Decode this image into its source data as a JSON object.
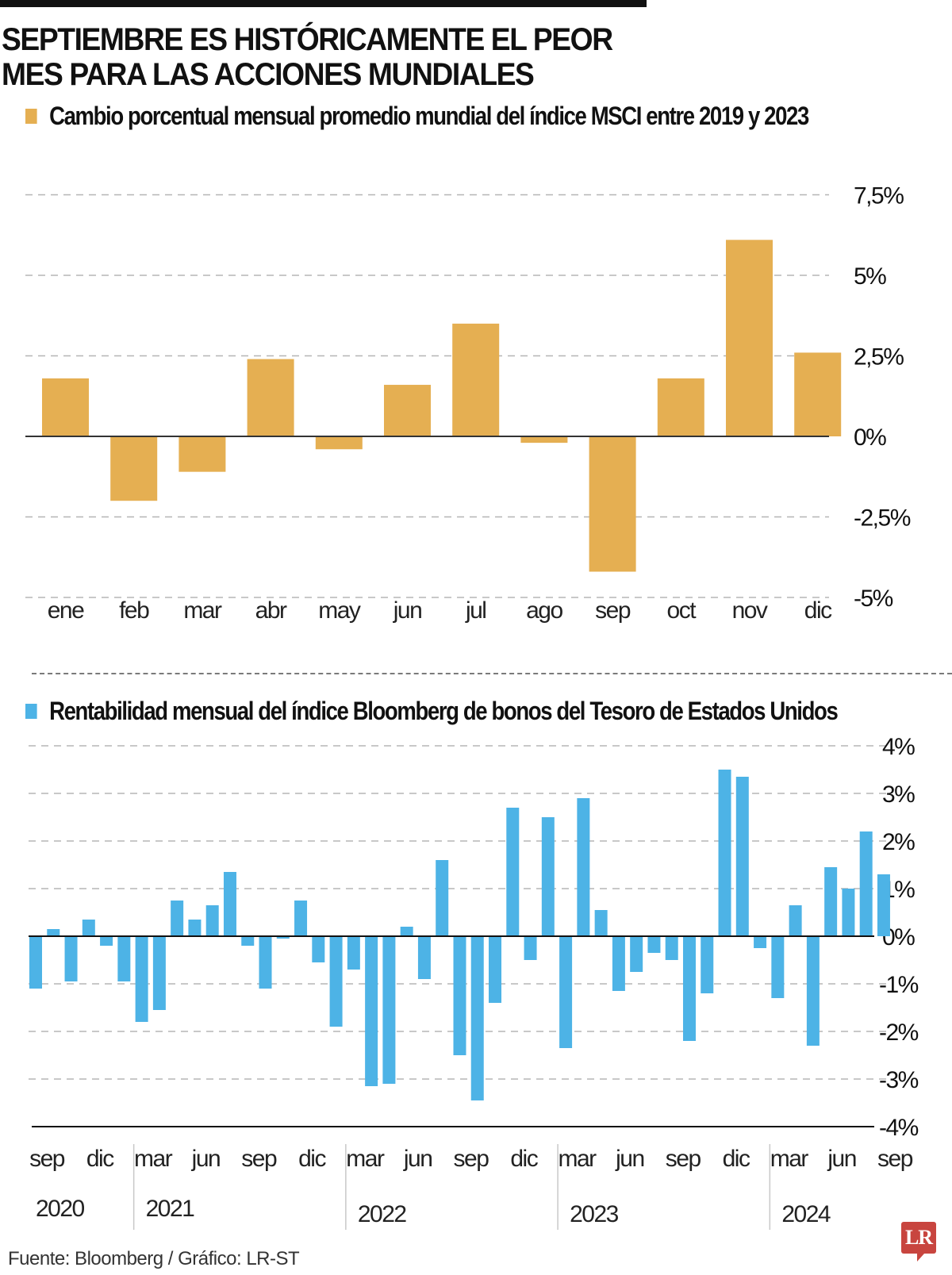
{
  "header": {
    "title_line1": "SEPTIEMBRE ES HISTÓRICAMENTE EL PEOR",
    "title_line2": "MES PARA LAS ACCIONES MUNDIALES"
  },
  "footer": {
    "source": "Fuente: Bloomberg / Gráfico: LR-ST",
    "logo_text": "LR"
  },
  "colors": {
    "msci_bar": "#E5AF52",
    "bloomberg_bar": "#4DB3E6",
    "logo": "#C8453F",
    "gridline": "#B5B5B5",
    "axis": "#333333"
  },
  "chart_data": [
    {
      "type": "bar",
      "title": "Cambio porcentual mensual promedio mundial del índice MSCI entre 2019 y 2023",
      "legend": "Cambio porcentual mensual promedio mundial del índice MSCI entre 2019 y 2023",
      "legend_position": "top-left",
      "xlabel": "",
      "ylabel": "",
      "categories": [
        "ene",
        "feb",
        "mar",
        "abr",
        "may",
        "jun",
        "jul",
        "ago",
        "sep",
        "oct",
        "nov",
        "dic"
      ],
      "values": [
        1.8,
        -2.0,
        -1.1,
        2.4,
        -0.4,
        1.6,
        3.5,
        -0.2,
        -4.2,
        1.8,
        6.1,
        2.6
      ],
      "unit": "%",
      "ylim": [
        -5,
        7.5
      ],
      "yticks": [
        7.5,
        5,
        2.5,
        0,
        -2.5,
        -5
      ],
      "ytick_labels": [
        "7,5%",
        "5%",
        "2,5%",
        "0%",
        "-2,5%",
        "-5%"
      ],
      "grid": true,
      "yaxis_side": "right"
    },
    {
      "type": "bar",
      "title": "Rentabilidad mensual del índice Bloomberg de bonos del Tesoro de Estados Unidos",
      "legend": "Rentabilidad mensual del índice Bloomberg de bonos del Tesoro de Estados Unidos",
      "legend_position": "top-left",
      "xlabel": "",
      "ylabel": "",
      "x_start": "sep 2020",
      "x_end": "sep 2024",
      "values": [
        -1.1,
        0.15,
        -0.95,
        0.35,
        -0.2,
        -0.95,
        -1.8,
        -1.55,
        0.75,
        0.35,
        0.65,
        1.35,
        -0.2,
        -1.1,
        -0.05,
        0.75,
        -0.55,
        -1.9,
        -0.7,
        -3.15,
        -3.1,
        0.2,
        -0.9,
        1.6,
        -2.5,
        -3.45,
        -1.4,
        2.7,
        -0.5,
        2.5,
        -2.35,
        2.9,
        0.55,
        -1.15,
        -0.75,
        -0.35,
        -0.5,
        -2.2,
        -1.2,
        3.5,
        3.35,
        -0.25,
        -1.3,
        0.65,
        -2.3,
        1.45,
        1.0,
        2.2,
        1.3
      ],
      "month_labels": [
        {
          "index": 0,
          "label": "sep"
        },
        {
          "index": 3,
          "label": "dic"
        },
        {
          "index": 6,
          "label": "mar"
        },
        {
          "index": 9,
          "label": "jun"
        },
        {
          "index": 12,
          "label": "sep"
        },
        {
          "index": 15,
          "label": "dic"
        },
        {
          "index": 18,
          "label": "mar"
        },
        {
          "index": 21,
          "label": "jun"
        },
        {
          "index": 24,
          "label": "sep"
        },
        {
          "index": 27,
          "label": "dic"
        },
        {
          "index": 30,
          "label": "mar"
        },
        {
          "index": 33,
          "label": "jun"
        },
        {
          "index": 36,
          "label": "sep"
        },
        {
          "index": 39,
          "label": "dic"
        },
        {
          "index": 42,
          "label": "mar"
        },
        {
          "index": 45,
          "label": "jun"
        },
        {
          "index": 48,
          "label": "sep"
        }
      ],
      "year_labels": [
        {
          "index": 0,
          "label": "2020"
        },
        {
          "index": 6,
          "label": "2021"
        },
        {
          "index": 18,
          "label": "2022"
        },
        {
          "index": 30,
          "label": "2023"
        },
        {
          "index": 42,
          "label": "2024"
        }
      ],
      "year_separators_before_index": [
        5,
        17,
        29,
        41
      ],
      "unit": "%",
      "ylim": [
        -4,
        4
      ],
      "yticks": [
        4,
        3,
        2,
        1,
        0,
        -1,
        -2,
        -3,
        -4
      ],
      "ytick_labels": [
        "4%",
        "3%",
        "2%",
        "1%",
        "0%",
        "-1%",
        "-2%",
        "-3%",
        "-4%"
      ],
      "grid": true,
      "yaxis_side": "right"
    }
  ]
}
